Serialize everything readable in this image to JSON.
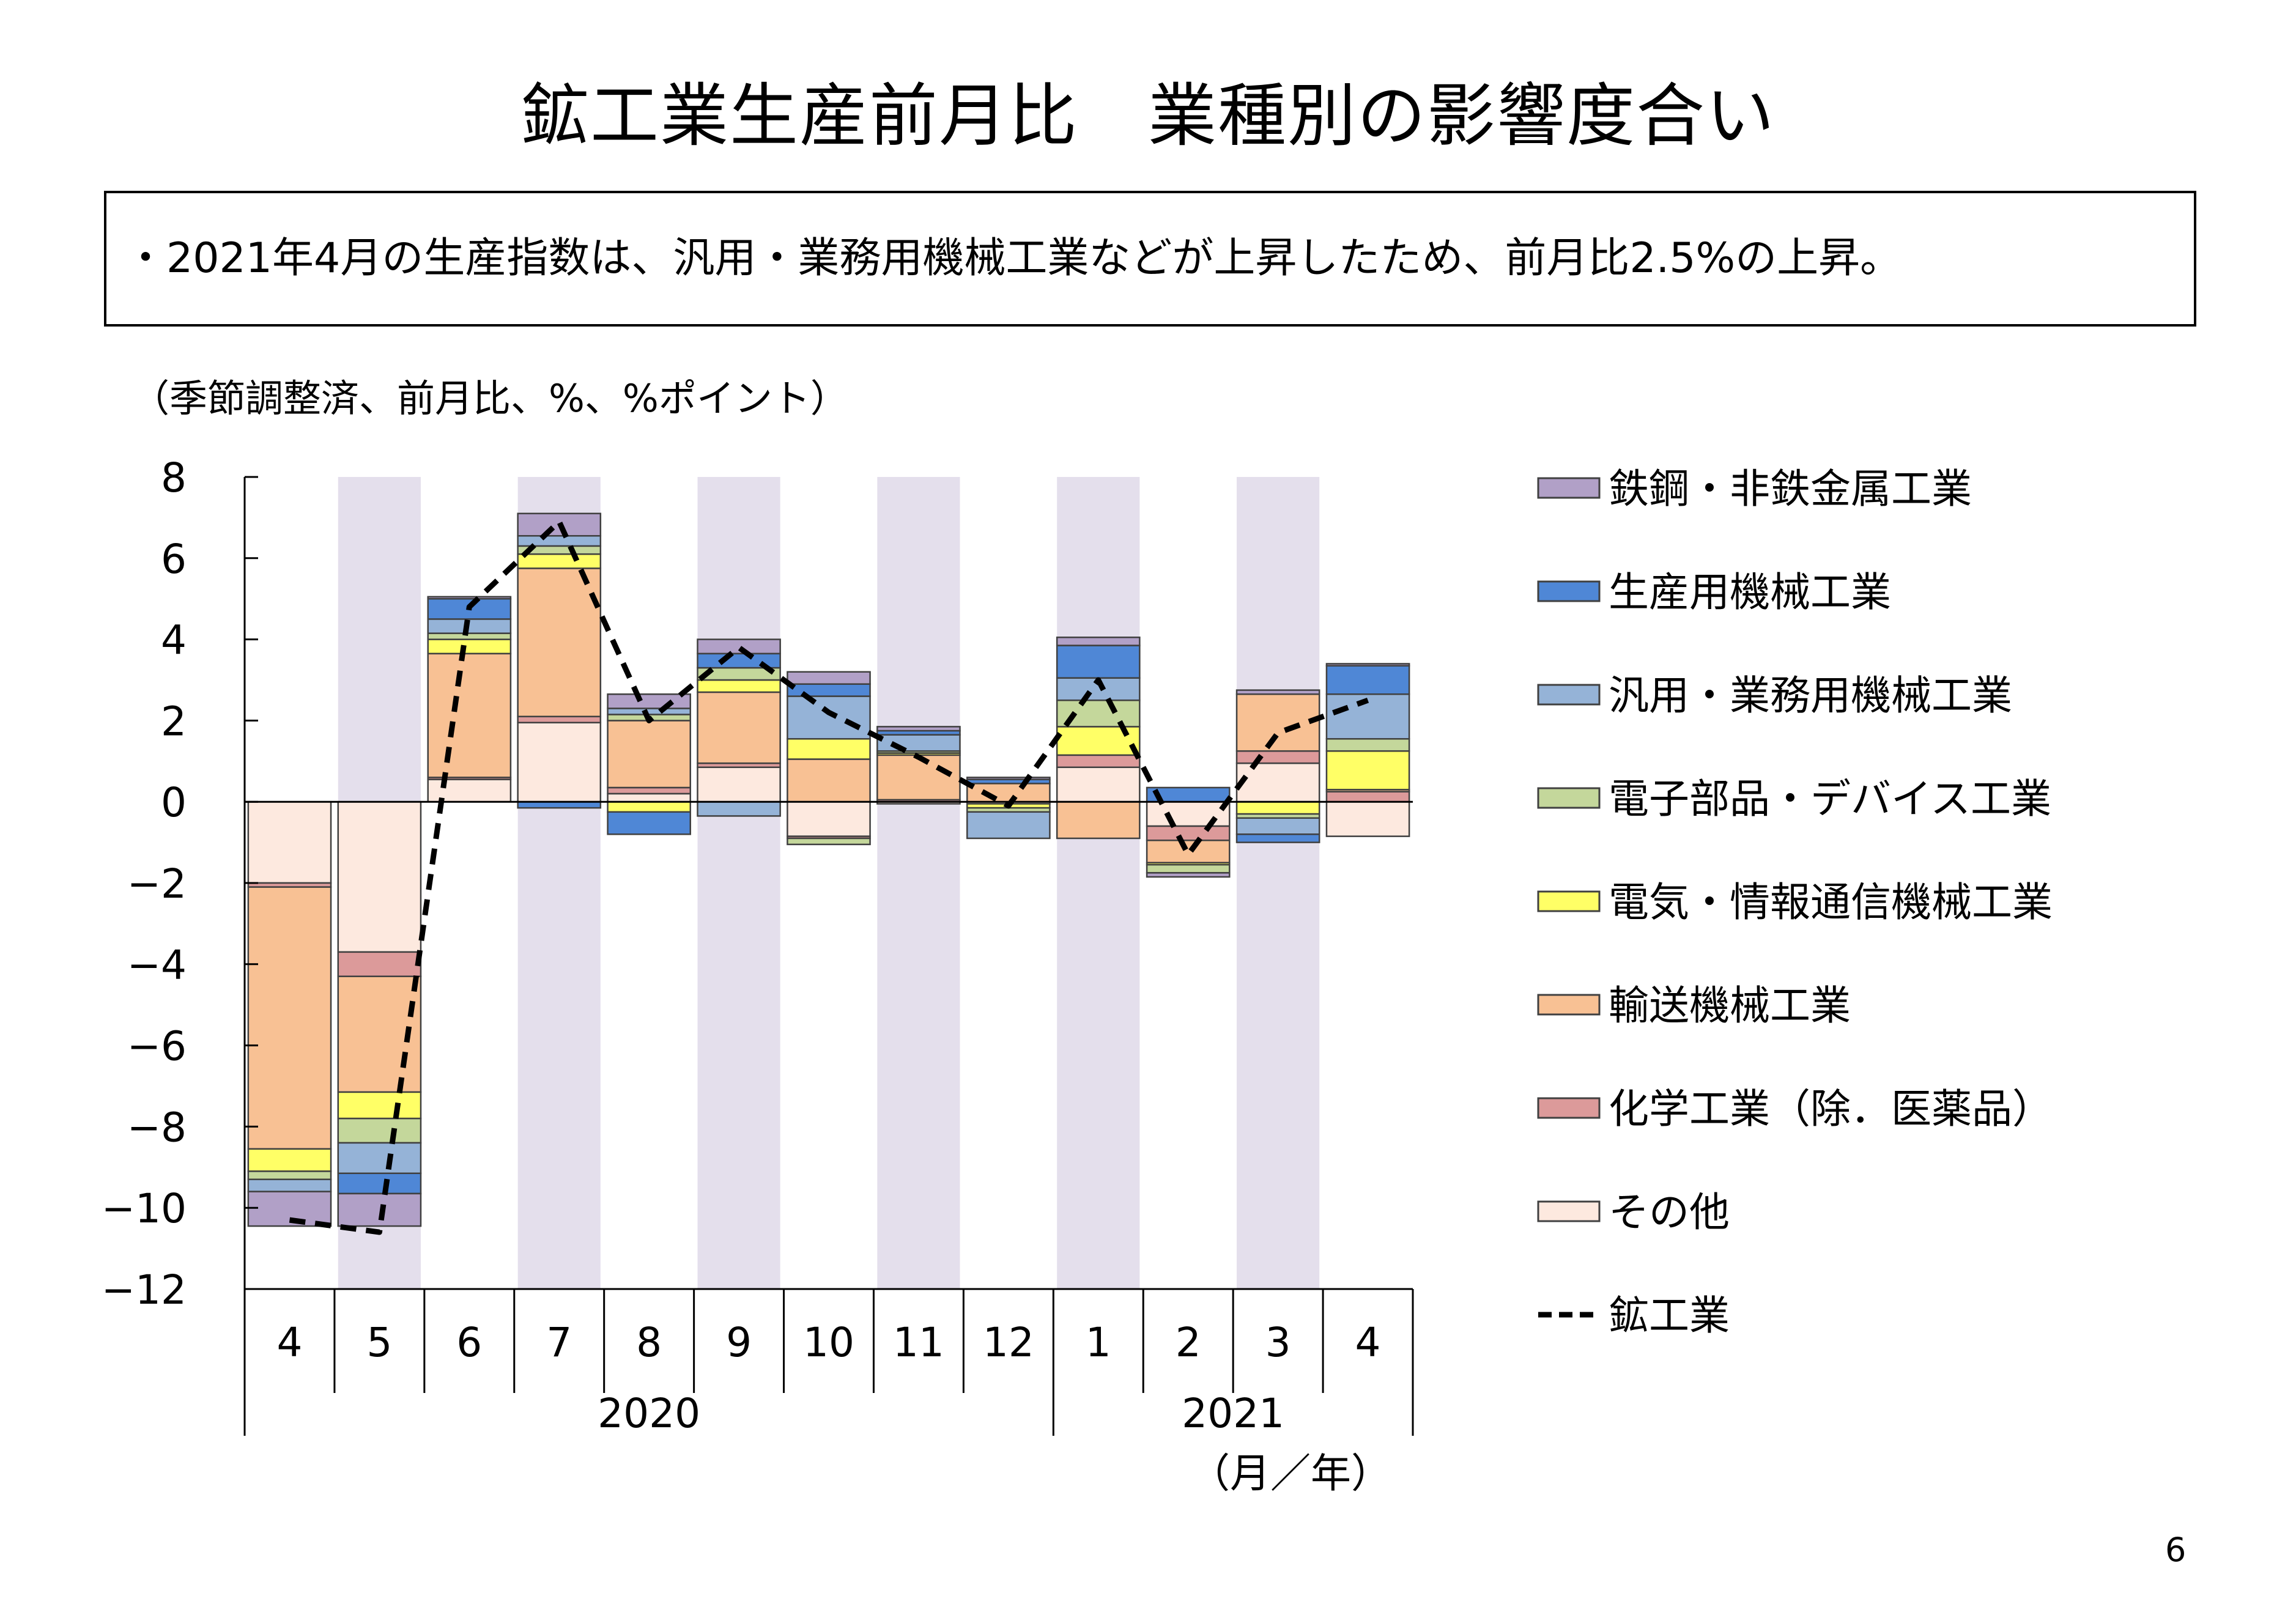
{
  "title": "鉱工業生産前月比　業種別の影響度合い",
  "summary": "・2021年4月の生産指数は、汎用・業務用機械工業などが上昇したため、前月比2.5%の上昇。",
  "page_number": "6",
  "chart_data": {
    "type": "bar",
    "stacked": true,
    "unit_note": "（季節調整済、前月比、%、%ポイント）",
    "x_unit_label": "（月／年）",
    "categories": [
      "4",
      "5",
      "6",
      "7",
      "8",
      "9",
      "10",
      "11",
      "12",
      "1",
      "2",
      "3",
      "4"
    ],
    "year_groups": [
      {
        "label": "2020",
        "from": 0,
        "to": 8
      },
      {
        "label": "2021",
        "from": 9,
        "to": 12
      }
    ],
    "shaded_categories": [
      1,
      3,
      5,
      7,
      9,
      11
    ],
    "ylim": [
      -12,
      8
    ],
    "yticks": [
      8,
      6,
      4,
      2,
      0,
      -2,
      -4,
      -6,
      -8,
      -10,
      -12
    ],
    "ytick_labels": [
      "8",
      "6",
      "4",
      "2",
      "0",
      "−2",
      "−4",
      "−6",
      "−8",
      "−10",
      "−12"
    ],
    "grid": false,
    "legend_position": "right",
    "series": [
      {
        "name": "その他",
        "color": "#fde9df",
        "values": [
          -2.0,
          -3.7,
          0.55,
          1.95,
          0.2,
          0.85,
          -0.85,
          -0.05,
          -0.05,
          0.85,
          -0.6,
          0.95,
          -0.85
        ]
      },
      {
        "name": "化学工業（除．医薬品）",
        "color": "#dc9a9a",
        "values": [
          -0.1,
          -0.6,
          0.05,
          0.15,
          0.15,
          0.1,
          -0.05,
          0.05,
          0.0,
          0.3,
          -0.35,
          0.3,
          0.25
        ]
      },
      {
        "name": "輸送機械工業",
        "color": "#f8c194",
        "values": [
          -6.45,
          -2.85,
          3.05,
          3.65,
          1.65,
          1.75,
          1.05,
          1.1,
          0.45,
          -0.9,
          -0.55,
          1.4,
          0.05
        ]
      },
      {
        "name": "電気・情報通信機械工業",
        "color": "#ffff66",
        "values": [
          -0.55,
          -0.65,
          0.35,
          0.35,
          -0.25,
          0.3,
          0.5,
          0.05,
          -0.1,
          0.7,
          -0.05,
          -0.3,
          0.95
        ]
      },
      {
        "name": "電子部品・デバイス工業",
        "color": "#c4d79b",
        "values": [
          -0.2,
          -0.6,
          0.15,
          0.2,
          0.15,
          0.3,
          -0.15,
          0.05,
          -0.1,
          0.65,
          -0.2,
          -0.1,
          0.3
        ]
      },
      {
        "name": "汎用・業務用機械工業",
        "color": "#95b3d7",
        "values": [
          -0.3,
          -0.75,
          0.35,
          0.25,
          0.15,
          -0.35,
          1.05,
          0.4,
          -0.65,
          0.55,
          0.0,
          -0.4,
          1.1
        ]
      },
      {
        "name": "生産用機械工業",
        "color": "#4f87d6",
        "values": [
          0.0,
          -0.5,
          0.5,
          -0.15,
          -0.55,
          0.35,
          0.3,
          0.1,
          0.1,
          0.8,
          0.35,
          -0.2,
          0.7
        ]
      },
      {
        "name": "鉄鋼・非鉄金属工業",
        "color": "#b1a0c7",
        "values": [
          -0.85,
          -0.8,
          0.05,
          0.55,
          0.35,
          0.35,
          0.3,
          0.1,
          0.05,
          0.2,
          -0.1,
          0.1,
          0.05
        ]
      }
    ],
    "legend_order": [
      "鉄鋼・非鉄金属工業",
      "生産用機械工業",
      "汎用・業務用機械工業",
      "電子部品・デバイス工業",
      "電気・情報通信機械工業",
      "輸送機械工業",
      "化学工業（除．医薬品）",
      "その他"
    ],
    "line": {
      "name": "鉱工業",
      "color": "#000000",
      "style": "dashed",
      "values": [
        -10.3,
        -10.6,
        4.8,
        6.9,
        2.0,
        3.8,
        2.2,
        1.1,
        -0.1,
        3.0,
        -1.3,
        1.7,
        2.5
      ]
    }
  }
}
